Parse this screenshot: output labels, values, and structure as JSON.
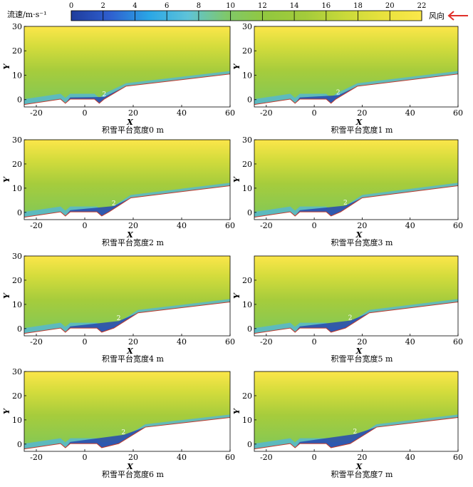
{
  "legend": {
    "label": "流速/m·s⁻¹",
    "ticks": [
      "0",
      "2",
      "4",
      "6",
      "8",
      "10",
      "12",
      "14",
      "16",
      "18",
      "20",
      "22"
    ],
    "wind_label": "风向",
    "wind_arrow_color": "#e0302a",
    "colormap": [
      "#1f3c9c",
      "#2f5fcf",
      "#2aa6e6",
      "#5ec3d8",
      "#7fc86a",
      "#92c83e",
      "#a3cb3b",
      "#c8d93a",
      "#e8e23d",
      "#fbe84a"
    ]
  },
  "chart_data": [
    {
      "type": "heatmap",
      "caption": "积雪平台宽度0 m",
      "xlabel": "X",
      "ylabel": "Y",
      "xlim": [
        -25,
        60
      ],
      "ylim": [
        -3,
        30
      ],
      "xticks": [
        "-20",
        "0",
        "20",
        "40",
        "60"
      ],
      "yticks": [
        "0",
        "10",
        "20",
        "30"
      ],
      "ground": [
        [
          -25,
          -2
        ],
        [
          -10,
          0.2
        ],
        [
          -8,
          -1.5
        ],
        [
          -6,
          0.2
        ],
        [
          4,
          0.2
        ],
        [
          6,
          -1.5
        ],
        [
          8,
          0.2
        ],
        [
          17,
          5.5
        ],
        [
          60,
          10.5
        ]
      ],
      "contour_label": "2",
      "contour_label_at": [
        8,
        2.3
      ]
    },
    {
      "type": "heatmap",
      "caption": "积雪平台宽度1 m",
      "xlabel": "X",
      "ylabel": "Y",
      "xlim": [
        -25,
        60
      ],
      "ylim": [
        -3,
        30
      ],
      "xticks": [
        "-20",
        "0",
        "20",
        "40",
        "60"
      ],
      "yticks": [
        "0",
        "10",
        "20",
        "30"
      ],
      "ground": [
        [
          -25,
          -2
        ],
        [
          -10,
          0.2
        ],
        [
          -8,
          -1.5
        ],
        [
          -6,
          0.2
        ],
        [
          5,
          0.2
        ],
        [
          7,
          -1.5
        ],
        [
          9,
          0.2
        ],
        [
          18,
          5.5
        ],
        [
          60,
          10.5
        ]
      ],
      "contour_label": "2",
      "contour_label_at": [
        10,
        3
      ]
    },
    {
      "type": "heatmap",
      "caption": "积雪平台宽度2 m",
      "xlabel": "X",
      "ylabel": "Y",
      "xlim": [
        -25,
        60
      ],
      "ylim": [
        -3,
        30
      ],
      "xticks": [
        "-20",
        "0",
        "20",
        "40",
        "60"
      ],
      "yticks": [
        "0",
        "10",
        "20",
        "30"
      ],
      "ground": [
        [
          -25,
          -2
        ],
        [
          -10,
          0.2
        ],
        [
          -8,
          -1.5
        ],
        [
          -6,
          0.2
        ],
        [
          5,
          0.2
        ],
        [
          7,
          -1.5
        ],
        [
          10,
          0.2
        ],
        [
          19,
          6
        ],
        [
          60,
          11
        ]
      ],
      "contour_label": "2",
      "contour_label_at": [
        12,
        3.8
      ]
    },
    {
      "type": "heatmap",
      "caption": "积雪平台宽度3 m",
      "xlabel": "X",
      "ylabel": "Y",
      "xlim": [
        -25,
        60
      ],
      "ylim": [
        -3,
        30
      ],
      "xticks": [
        "-20",
        "0",
        "20",
        "40",
        "60"
      ],
      "yticks": [
        "0",
        "10",
        "20",
        "30"
      ],
      "ground": [
        [
          -25,
          -2
        ],
        [
          -10,
          0.2
        ],
        [
          -8,
          -1.5
        ],
        [
          -6,
          0.2
        ],
        [
          5,
          0.2
        ],
        [
          7,
          -1.5
        ],
        [
          11,
          0.2
        ],
        [
          20,
          6
        ],
        [
          60,
          11
        ]
      ],
      "contour_label": "2",
      "contour_label_at": [
        13,
        4
      ]
    },
    {
      "type": "heatmap",
      "caption": "积雪平台宽度4 m",
      "xlabel": "X",
      "ylabel": "Y",
      "xlim": [
        -25,
        60
      ],
      "ylim": [
        -3,
        30
      ],
      "xticks": [
        "-20",
        "0",
        "20",
        "40",
        "60"
      ],
      "yticks": [
        "0",
        "10",
        "20",
        "30"
      ],
      "ground": [
        [
          -25,
          -2
        ],
        [
          -10,
          0.2
        ],
        [
          -8,
          -1.5
        ],
        [
          -6,
          0.2
        ],
        [
          5,
          0.2
        ],
        [
          7,
          -1.5
        ],
        [
          12,
          0.2
        ],
        [
          22,
          6.5
        ],
        [
          60,
          11
        ]
      ],
      "contour_label": "2",
      "contour_label_at": [
        14,
        4.3
      ]
    },
    {
      "type": "heatmap",
      "caption": "积雪平台宽度5 m",
      "xlabel": "X",
      "ylabel": "Y",
      "xlim": [
        -25,
        60
      ],
      "ylim": [
        -3,
        30
      ],
      "xticks": [
        "-20",
        "0",
        "20",
        "40",
        "60"
      ],
      "yticks": [
        "0",
        "10",
        "20"
      ],
      "ground": [
        [
          -25,
          -2
        ],
        [
          -10,
          0.2
        ],
        [
          -8,
          -1.5
        ],
        [
          -6,
          0.2
        ],
        [
          5,
          0.2
        ],
        [
          7,
          -1.5
        ],
        [
          13,
          0.2
        ],
        [
          23,
          6.5
        ],
        [
          60,
          11
        ]
      ],
      "contour_label": "2",
      "contour_label_at": [
        15,
        4.5
      ]
    },
    {
      "type": "heatmap",
      "caption": "积雪平台宽度6 m",
      "xlabel": "X",
      "ylabel": "Y",
      "xlim": [
        -25,
        60
      ],
      "ylim": [
        -3,
        30
      ],
      "xticks": [
        "-20",
        "0",
        "20",
        "40",
        "60"
      ],
      "yticks": [
        "0",
        "10",
        "20",
        "30"
      ],
      "ground": [
        [
          -25,
          -2
        ],
        [
          -10,
          0.2
        ],
        [
          -8,
          -1.5
        ],
        [
          -6,
          0.2
        ],
        [
          5,
          0.2
        ],
        [
          7,
          -1.5
        ],
        [
          14,
          0.2
        ],
        [
          25,
          7
        ],
        [
          60,
          11
        ]
      ],
      "contour_label": "2",
      "contour_label_at": [
        16,
        5
      ]
    },
    {
      "type": "heatmap",
      "caption": "积雪平台宽度7 m",
      "xlabel": "X",
      "ylabel": "Y",
      "xlim": [
        -25,
        60
      ],
      "ylim": [
        -3,
        30
      ],
      "xticks": [
        "-20",
        "0",
        "20",
        "40",
        "60"
      ],
      "yticks": [
        "0",
        "10",
        "20"
      ],
      "ground": [
        [
          -25,
          -2
        ],
        [
          -10,
          0.2
        ],
        [
          -8,
          -1.5
        ],
        [
          -6,
          0.2
        ],
        [
          5,
          0.2
        ],
        [
          7,
          -1.5
        ],
        [
          15,
          0.2
        ],
        [
          26,
          7
        ],
        [
          60,
          11
        ]
      ],
      "contour_label": "2",
      "contour_label_at": [
        17,
        5.3
      ]
    }
  ]
}
